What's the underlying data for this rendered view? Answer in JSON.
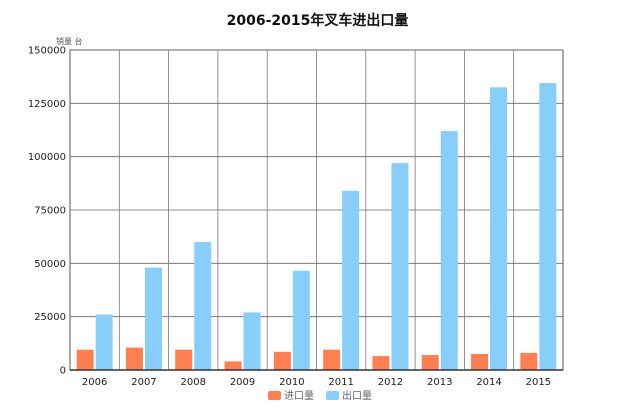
{
  "chart_data": {
    "type": "bar",
    "title": "2006-2015年叉车进出口量",
    "ylabel": "销量 台",
    "categories": [
      "2006",
      "2007",
      "2008",
      "2009",
      "2010",
      "2011",
      "2012",
      "2013",
      "2014",
      "2015"
    ],
    "series": [
      {
        "name": "进口量",
        "color": "#ff7f50",
        "values": [
          9500,
          10500,
          9500,
          4000,
          8500,
          9500,
          6500,
          7000,
          7500,
          8000
        ]
      },
      {
        "name": "出口量",
        "color": "#87cefa",
        "values": [
          26000,
          48000,
          60000,
          27000,
          46500,
          84000,
          97000,
          112000,
          132500,
          134500
        ]
      }
    ],
    "ylim": [
      0,
      150000
    ],
    "yticks": [
      0,
      25000,
      50000,
      75000,
      100000,
      125000,
      150000
    ],
    "grid": true,
    "legend_position": "bottom-center"
  }
}
